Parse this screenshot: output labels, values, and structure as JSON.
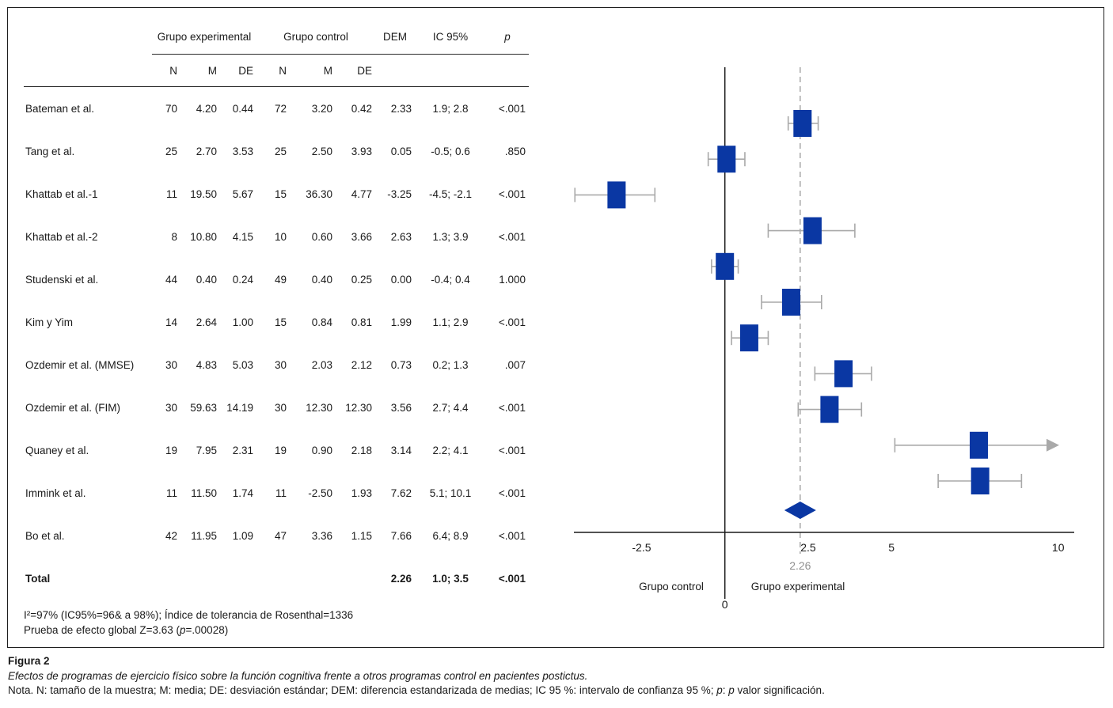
{
  "figure": {
    "table": {
      "group_headers": {
        "experimental": "Grupo experimental",
        "control": "Grupo control"
      },
      "stat_headers": {
        "dem": "DEM",
        "ic": "IC 95%",
        "p": "p"
      },
      "sub_headers": [
        "N",
        "M",
        "DE",
        "N",
        "M",
        "DE"
      ],
      "rows": [
        {
          "study": "Bateman et al.",
          "n1": "70",
          "m1": "4.20",
          "de1": "0.44",
          "n2": "72",
          "m2": "3.20",
          "de2": "0.42",
          "dem": "2.33",
          "ic": "1.9; 2.8",
          "p": "<.001"
        },
        {
          "study": "Tang et al.",
          "n1": "25",
          "m1": "2.70",
          "de1": "3.53",
          "n2": "25",
          "m2": "2.50",
          "de2": "3.93",
          "dem": "0.05",
          "ic": "-0.5; 0.6",
          "p": ".850"
        },
        {
          "study": "Khattab et al.-1",
          "n1": "11",
          "m1": "19.50",
          "de1": "5.67",
          "n2": "15",
          "m2": "36.30",
          "de2": "4.77",
          "dem": "-3.25",
          "ic": "-4.5; -2.1",
          "p": "<.001"
        },
        {
          "study": "Khattab et al.-2",
          "n1": "8",
          "m1": "10.80",
          "de1": "4.15",
          "n2": "10",
          "m2": "0.60",
          "de2": "3.66",
          "dem": "2.63",
          "ic": "1.3; 3.9",
          "p": "<.001"
        },
        {
          "study": "Studenski et al.",
          "n1": "44",
          "m1": "0.40",
          "de1": "0.24",
          "n2": "49",
          "m2": "0.40",
          "de2": "0.25",
          "dem": "0.00",
          "ic": "-0.4; 0.4",
          "p": "1.000"
        },
        {
          "study": "Kim y Yim",
          "n1": "14",
          "m1": "2.64",
          "de1": "1.00",
          "n2": "15",
          "m2": "0.84",
          "de2": "0.81",
          "dem": "1.99",
          "ic": "1.1; 2.9",
          "p": "<.001"
        },
        {
          "study": "Ozdemir et al. (MMSE)",
          "n1": "30",
          "m1": "4.83",
          "de1": "5.03",
          "n2": "30",
          "m2": "2.03",
          "de2": "2.12",
          "dem": "0.73",
          "ic": "0.2; 1.3",
          "p": ".007"
        },
        {
          "study": "Ozdemir et al. (FIM)",
          "n1": "30",
          "m1": "59.63",
          "de1": "14.19",
          "n2": "30",
          "m2": "12.30",
          "de2": "12.30",
          "dem": "3.56",
          "ic": "2.7; 4.4",
          "p": "<.001"
        },
        {
          "study": "Quaney et al.",
          "n1": "19",
          "m1": "7.95",
          "de1": "2.31",
          "n2": "19",
          "m2": "0.90",
          "de2": "2.18",
          "dem": "3.14",
          "ic": "2.2; 4.1",
          "p": "<.001"
        },
        {
          "study": "Immink et al.",
          "n1": "11",
          "m1": "11.50",
          "de1": "1.74",
          "n2": "11",
          "m2": "-2.50",
          "de2": "1.93",
          "dem": "7.62",
          "ic": "5.1; 10.1",
          "p": "<.001"
        },
        {
          "study": "Bo et al.",
          "n1": "42",
          "m1": "11.95",
          "de1": "1.09",
          "n2": "47",
          "m2": "3.36",
          "de2": "1.15",
          "dem": "7.66",
          "ic": "6.4; 8.9",
          "p": "<.001"
        }
      ],
      "total_row": {
        "study": "Total",
        "dem": "2.26",
        "ic": "1.0; 3.5",
        "p": "<.001"
      },
      "footnote_line1": "I²=97% (IC95%=96& a 98%); Índice de tolerancia de Rosenthal=1336",
      "footnote_line2_parts": [
        "Prueba de efecto global Z=3.63 (",
        "p",
        "=.00028)"
      ]
    }
  },
  "chart_data": {
    "type": "forest",
    "studies": [
      {
        "label": "Bateman et al.",
        "dem": 2.33,
        "ci_low": 1.9,
        "ci_high": 2.8
      },
      {
        "label": "Tang et al.",
        "dem": 0.05,
        "ci_low": -0.5,
        "ci_high": 0.6
      },
      {
        "label": "Khattab et al.-1",
        "dem": -3.25,
        "ci_low": -4.5,
        "ci_high": -2.1
      },
      {
        "label": "Khattab et al.-2",
        "dem": 2.63,
        "ci_low": 1.3,
        "ci_high": 3.9
      },
      {
        "label": "Studenski et al.",
        "dem": 0.0,
        "ci_low": -0.4,
        "ci_high": 0.4
      },
      {
        "label": "Kim y Yim",
        "dem": 1.99,
        "ci_low": 1.1,
        "ci_high": 2.9
      },
      {
        "label": "Ozdemir et al. (MMSE)",
        "dem": 0.73,
        "ci_low": 0.2,
        "ci_high": 1.3
      },
      {
        "label": "Ozdemir et al. (FIM)",
        "dem": 3.56,
        "ci_low": 2.7,
        "ci_high": 4.4
      },
      {
        "label": "Quaney et al.",
        "dem": 3.14,
        "ci_low": 2.2,
        "ci_high": 4.1
      },
      {
        "label": "Immink et al.",
        "dem": 7.62,
        "ci_low": 5.1,
        "ci_high": 10.1,
        "arrow_right": true
      },
      {
        "label": "Bo et al.",
        "dem": 7.66,
        "ci_low": 6.4,
        "ci_high": 8.9
      }
    ],
    "total": {
      "label": "Total",
      "dem": 2.26,
      "ci_low": 1.0,
      "ci_high": 3.5
    },
    "xlim": [
      -4.5,
      10.5
    ],
    "x_ticks": [
      -2.5,
      2.5,
      5,
      10
    ],
    "x_tick_labels": [
      "-2.5",
      "2.5",
      "5",
      "10"
    ],
    "reference_line": 0,
    "zero_label": "0",
    "pooled_line": 2.26,
    "pooled_label": "2.26",
    "axis_left_label": "Grupo control",
    "axis_right_label": "Grupo experimental",
    "grid": false,
    "colors": {
      "box": "#0a37a3",
      "whisker": "#a9a9a9",
      "axis": "#1a1a1a",
      "pooled_text": "#8f8f8f"
    }
  },
  "caption": {
    "title": "Figura 2",
    "subtitle": "Efectos de programas de ejercicio físico sobre la función cognitiva frente a otros programas control en pacientes postictus.",
    "nota_parts": [
      "Nota. N: tamaño de la muestra; M: media; DE: desviación estándar; DEM: diferencia estandarizada de medias; IC 95 %: intervalo de confianza 95 %; ",
      "p",
      ": ",
      "p",
      " valor significación."
    ]
  }
}
